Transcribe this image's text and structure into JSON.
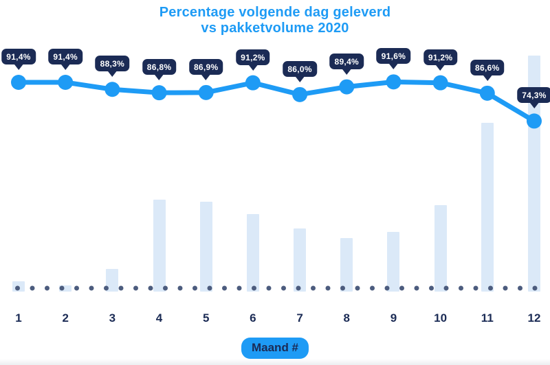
{
  "title": {
    "line1": "Percentage volgende dag geleverd",
    "line2": "vs pakketvolume 2020"
  },
  "x_axis": {
    "tick_labels": [
      "1",
      "2",
      "3",
      "4",
      "5",
      "6",
      "7",
      "8",
      "9",
      "10",
      "11",
      "12"
    ],
    "axis_badge": "Maand #"
  },
  "chart_data": {
    "type": "combo",
    "title": "Percentage volgende dag geleverd vs pakketvolume 2020",
    "xlabel": "Maand #",
    "ylabel": "",
    "legend": "none",
    "grid": "dotted baseline only",
    "categories": [
      1,
      2,
      3,
      4,
      5,
      6,
      7,
      8,
      9,
      10,
      11,
      12
    ],
    "series": [
      {
        "name": "Percentage volgende dag geleverd",
        "type": "line",
        "unit": "%",
        "values": [
          91.4,
          91.4,
          88.3,
          86.8,
          86.9,
          91.2,
          86.0,
          89.4,
          91.6,
          91.2,
          86.6,
          74.3
        ],
        "point_labels": [
          "91,4%",
          "91,4%",
          "88,3%",
          "86,8%",
          "86,9%",
          "91,2%",
          "86,0%",
          "89,4%",
          "91,6%",
          "91,2%",
          "86,6%",
          "74,3%"
        ]
      },
      {
        "name": "Pakketvolume 2020",
        "type": "bar",
        "unit": "relative height, % of max (no value axis shown)",
        "values": [
          4.4,
          2.6,
          9.6,
          39.0,
          38.1,
          32.8,
          26.7,
          22.7,
          25.3,
          36.6,
          71.5,
          100
        ]
      }
    ]
  },
  "colors": {
    "accent_blue": "#1E9BF5",
    "navy": "#1B2B55",
    "bar_fill": "#DBE9F8",
    "baseline_dot": "#4C5C7E",
    "background": "#FFFFFF"
  }
}
